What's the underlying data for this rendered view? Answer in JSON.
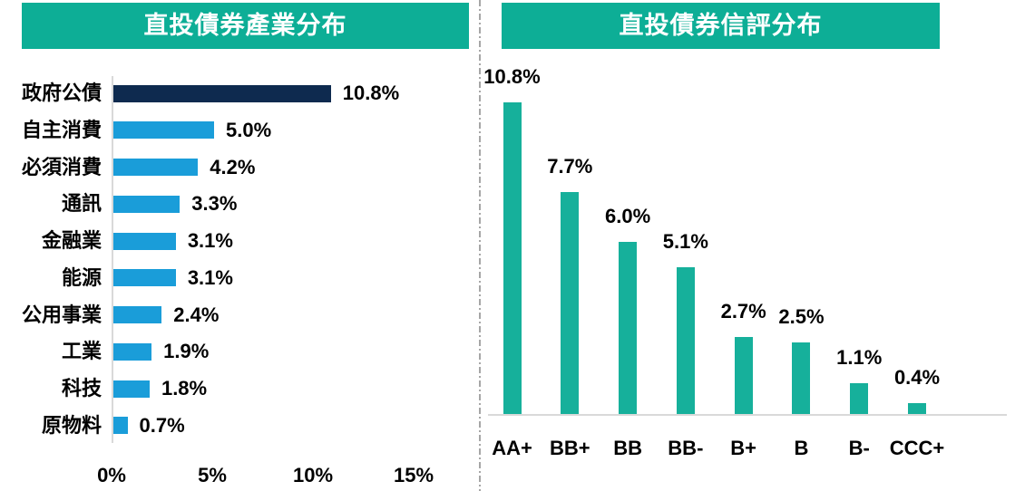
{
  "page": {
    "background": "#ffffff",
    "divider_color": "#a6a6a6",
    "axis_color": "#d9d9d9",
    "text_color": "#000000"
  },
  "chart_data": [
    {
      "type": "bar",
      "orientation": "horizontal",
      "title": "直投債券產業分布",
      "title_bg": "#0dae96",
      "title_color": "#ffffff",
      "categories": [
        "政府公債",
        "自主消費",
        "必須消費",
        "通訊",
        "金融業",
        "能源",
        "公用事業",
        "工業",
        "科技",
        "原物料"
      ],
      "values": [
        10.8,
        5.0,
        4.2,
        3.3,
        3.1,
        3.1,
        2.4,
        1.9,
        1.8,
        0.7
      ],
      "value_labels": [
        "10.8%",
        "5.0%",
        "4.2%",
        "3.3%",
        "3.1%",
        "3.1%",
        "2.4%",
        "1.9%",
        "1.8%",
        "0.7%"
      ],
      "bar_colors": [
        "#0e2a4f",
        "#1a9dd9",
        "#1a9dd9",
        "#1a9dd9",
        "#1a9dd9",
        "#1a9dd9",
        "#1a9dd9",
        "#1a9dd9",
        "#1a9dd9",
        "#1a9dd9"
      ],
      "x_ticks": [
        "0%",
        "5%",
        "10%",
        "15%"
      ],
      "x_tick_values": [
        0,
        5,
        10,
        15
      ],
      "xlim": [
        0,
        15
      ],
      "grid": false,
      "legend": false
    },
    {
      "type": "bar",
      "orientation": "vertical",
      "title": "直投債券信評分布",
      "title_bg": "#0dae96",
      "title_color": "#ffffff",
      "categories": [
        "AA+",
        "BB+",
        "BB",
        "BB-",
        "B+",
        "B",
        "B-",
        "CCC+"
      ],
      "values": [
        10.8,
        7.7,
        6.0,
        5.1,
        2.7,
        2.5,
        1.1,
        0.4
      ],
      "value_labels": [
        "10.8%",
        "7.7%",
        "6.0%",
        "5.1%",
        "2.7%",
        "2.5%",
        "1.1%",
        "0.4%"
      ],
      "bar_color": "#16b09b",
      "baseline_color": "#d9d9d9",
      "ylim": [
        0,
        12
      ],
      "grid": false,
      "legend": false
    }
  ]
}
